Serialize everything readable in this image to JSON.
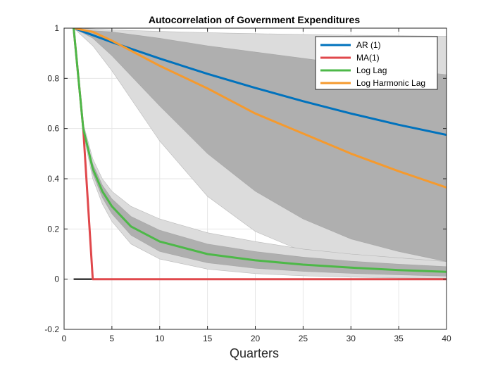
{
  "chart_data": {
    "type": "line",
    "title": "Autocorrelation of Government Expenditures",
    "xlabel": "Quarters",
    "ylabel": "",
    "xlim": [
      0,
      40
    ],
    "ylim": [
      -0.2,
      1
    ],
    "xticks": [
      0,
      5,
      10,
      15,
      20,
      25,
      30,
      35,
      40
    ],
    "yticks": [
      -0.2,
      0,
      0.2,
      0.4,
      0.6,
      0.8,
      1
    ],
    "ytick_labels": [
      "-0.2",
      "0",
      "0.2",
      "0.4",
      "0.6",
      "0.8",
      "1"
    ],
    "grid": true,
    "legend_position": "top-right",
    "colors": {
      "ar1": "#0072BD",
      "ma1": "#E0484C",
      "loglag": "#4DB848",
      "logharm": "#F59A2E",
      "zero_line": "#000000",
      "outer_band": "#DCDCDC",
      "inner_band": "#AFAFAF",
      "grid": "#E6E6E6"
    },
    "series": [
      {
        "name": "AR (1)",
        "key": "ar1",
        "x": [
          1,
          5,
          10,
          15,
          20,
          25,
          30,
          35,
          40
        ],
        "values": [
          1.0,
          0.944,
          0.879,
          0.818,
          0.762,
          0.709,
          0.66,
          0.615,
          0.575
        ]
      },
      {
        "name": "MA(1)",
        "key": "ma1",
        "x": [
          1,
          2,
          3,
          40
        ],
        "values": [
          1.0,
          0.6,
          0.0,
          0.0
        ]
      },
      {
        "name": "Log Lag",
        "key": "loglag",
        "x": [
          1,
          2,
          3,
          4,
          5,
          7,
          10,
          15,
          20,
          25,
          30,
          35,
          40
        ],
        "values": [
          1.0,
          0.6,
          0.44,
          0.35,
          0.29,
          0.21,
          0.15,
          0.1,
          0.075,
          0.058,
          0.046,
          0.036,
          0.029
        ]
      },
      {
        "name": "Log Harmonic Lag",
        "key": "logharm",
        "x": [
          1,
          3,
          5,
          10,
          15,
          20,
          25,
          30,
          35,
          40
        ],
        "values": [
          1.0,
          0.985,
          0.95,
          0.85,
          0.76,
          0.66,
          0.58,
          0.5,
          0.43,
          0.365
        ]
      }
    ],
    "bands": [
      {
        "layer": "outer",
        "x": [
          1,
          3,
          5,
          10,
          15,
          20,
          25,
          30,
          35,
          40
        ],
        "upper": [
          1.0,
          0.997,
          0.993,
          0.987,
          0.982,
          0.978,
          0.975,
          0.972,
          0.97,
          0.968
        ],
        "lower": [
          1.0,
          0.93,
          0.83,
          0.55,
          0.33,
          0.19,
          0.11,
          0.065,
          0.04,
          0.025
        ]
      },
      {
        "layer": "inner",
        "x": [
          1,
          3,
          5,
          10,
          15,
          20,
          25,
          30,
          35,
          40
        ],
        "upper": [
          1.0,
          0.99,
          0.985,
          0.96,
          0.93,
          0.905,
          0.88,
          0.855,
          0.835,
          0.815
        ],
        "lower": [
          1.0,
          0.96,
          0.89,
          0.69,
          0.5,
          0.35,
          0.24,
          0.16,
          0.11,
          0.07
        ]
      },
      {
        "layer": "outer",
        "x": [
          1,
          2,
          3,
          4,
          5,
          7,
          10,
          15,
          20,
          25,
          30,
          35,
          40
        ],
        "upper": [
          1.0,
          0.62,
          0.48,
          0.4,
          0.35,
          0.29,
          0.24,
          0.185,
          0.15,
          0.12,
          0.1,
          0.085,
          0.07
        ],
        "lower": [
          1.0,
          0.58,
          0.4,
          0.3,
          0.23,
          0.14,
          0.08,
          0.04,
          0.022,
          0.013,
          0.008,
          0.005,
          0.003
        ]
      },
      {
        "layer": "inner",
        "x": [
          1,
          2,
          3,
          4,
          5,
          7,
          10,
          15,
          20,
          25,
          30,
          35,
          40
        ],
        "upper": [
          1.0,
          0.61,
          0.46,
          0.375,
          0.32,
          0.25,
          0.195,
          0.14,
          0.11,
          0.088,
          0.072,
          0.06,
          0.05
        ],
        "lower": [
          1.0,
          0.59,
          0.42,
          0.325,
          0.26,
          0.175,
          0.11,
          0.065,
          0.043,
          0.031,
          0.023,
          0.017,
          0.012
        ]
      }
    ]
  }
}
